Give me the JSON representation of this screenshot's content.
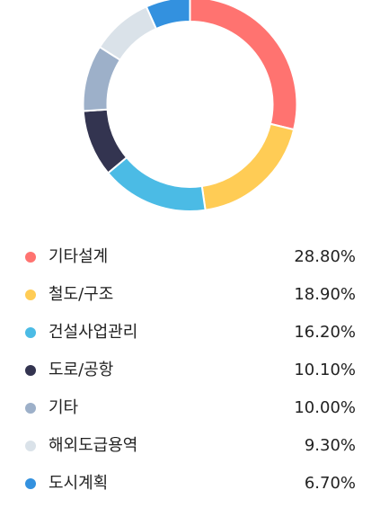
{
  "chart_data": {
    "type": "pie",
    "donut": true,
    "categories": [
      "기타설계",
      "철도/구조",
      "건설사업관리",
      "도로/공항",
      "기타",
      "해외도급용역",
      "도시계획"
    ],
    "values": [
      28.8,
      18.9,
      16.2,
      10.1,
      10.0,
      9.3,
      6.7
    ],
    "value_labels": [
      "28.80%",
      "18.90%",
      "16.20%",
      "10.10%",
      "10.00%",
      "9.30%",
      "6.70%"
    ],
    "colors": [
      "#ff7370",
      "#ffcc55",
      "#4bbbe5",
      "#333450",
      "#9db0c9",
      "#dae2e9",
      "#3391df"
    ],
    "legend": "bottom"
  }
}
